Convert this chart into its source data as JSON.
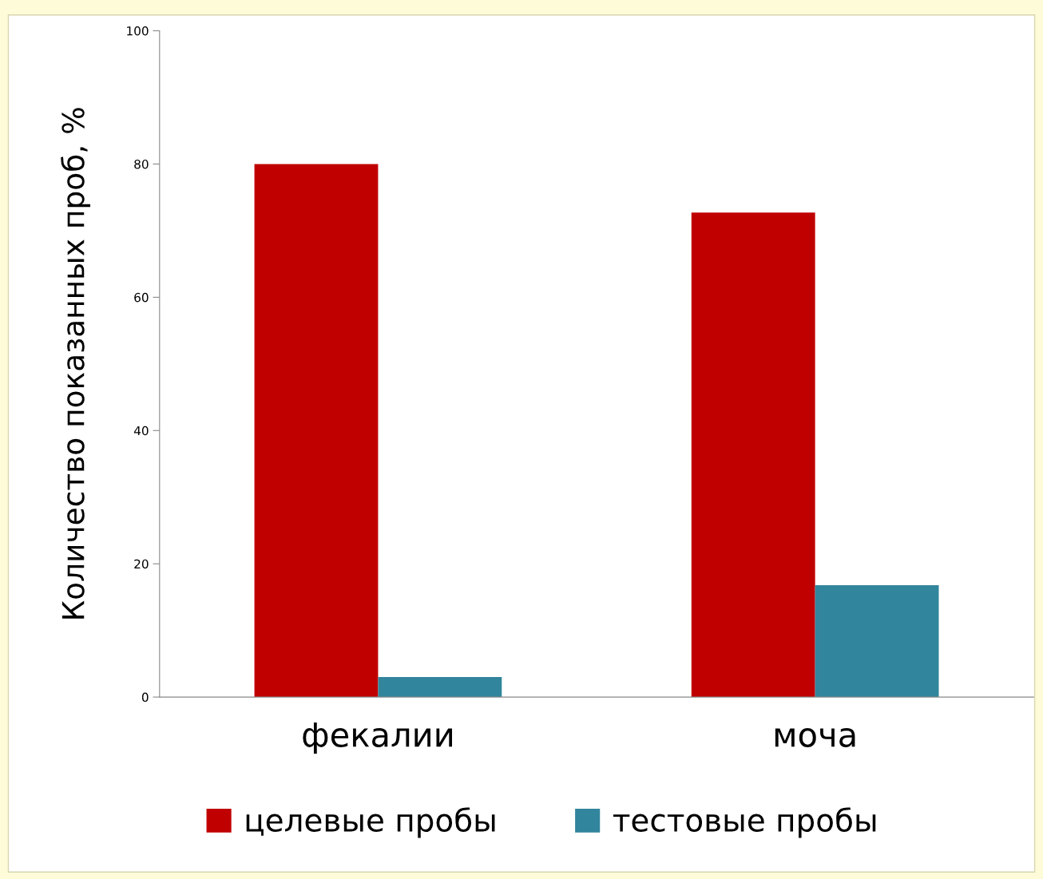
{
  "chart_data": {
    "type": "bar",
    "ylabel": "Количество показанных проб, %",
    "categories": [
      "фекалии",
      "моча"
    ],
    "series": [
      {
        "name": "целевые пробы",
        "color": "#c00000",
        "values": [
          80,
          72.7
        ]
      },
      {
        "name": "тестовые пробы",
        "color": "#31859c",
        "values": [
          3,
          16.8
        ]
      }
    ],
    "ylim": [
      0,
      100
    ],
    "yticks": [
      0,
      20,
      40,
      60,
      80,
      100
    ],
    "grid": false,
    "legend": "bottom"
  }
}
